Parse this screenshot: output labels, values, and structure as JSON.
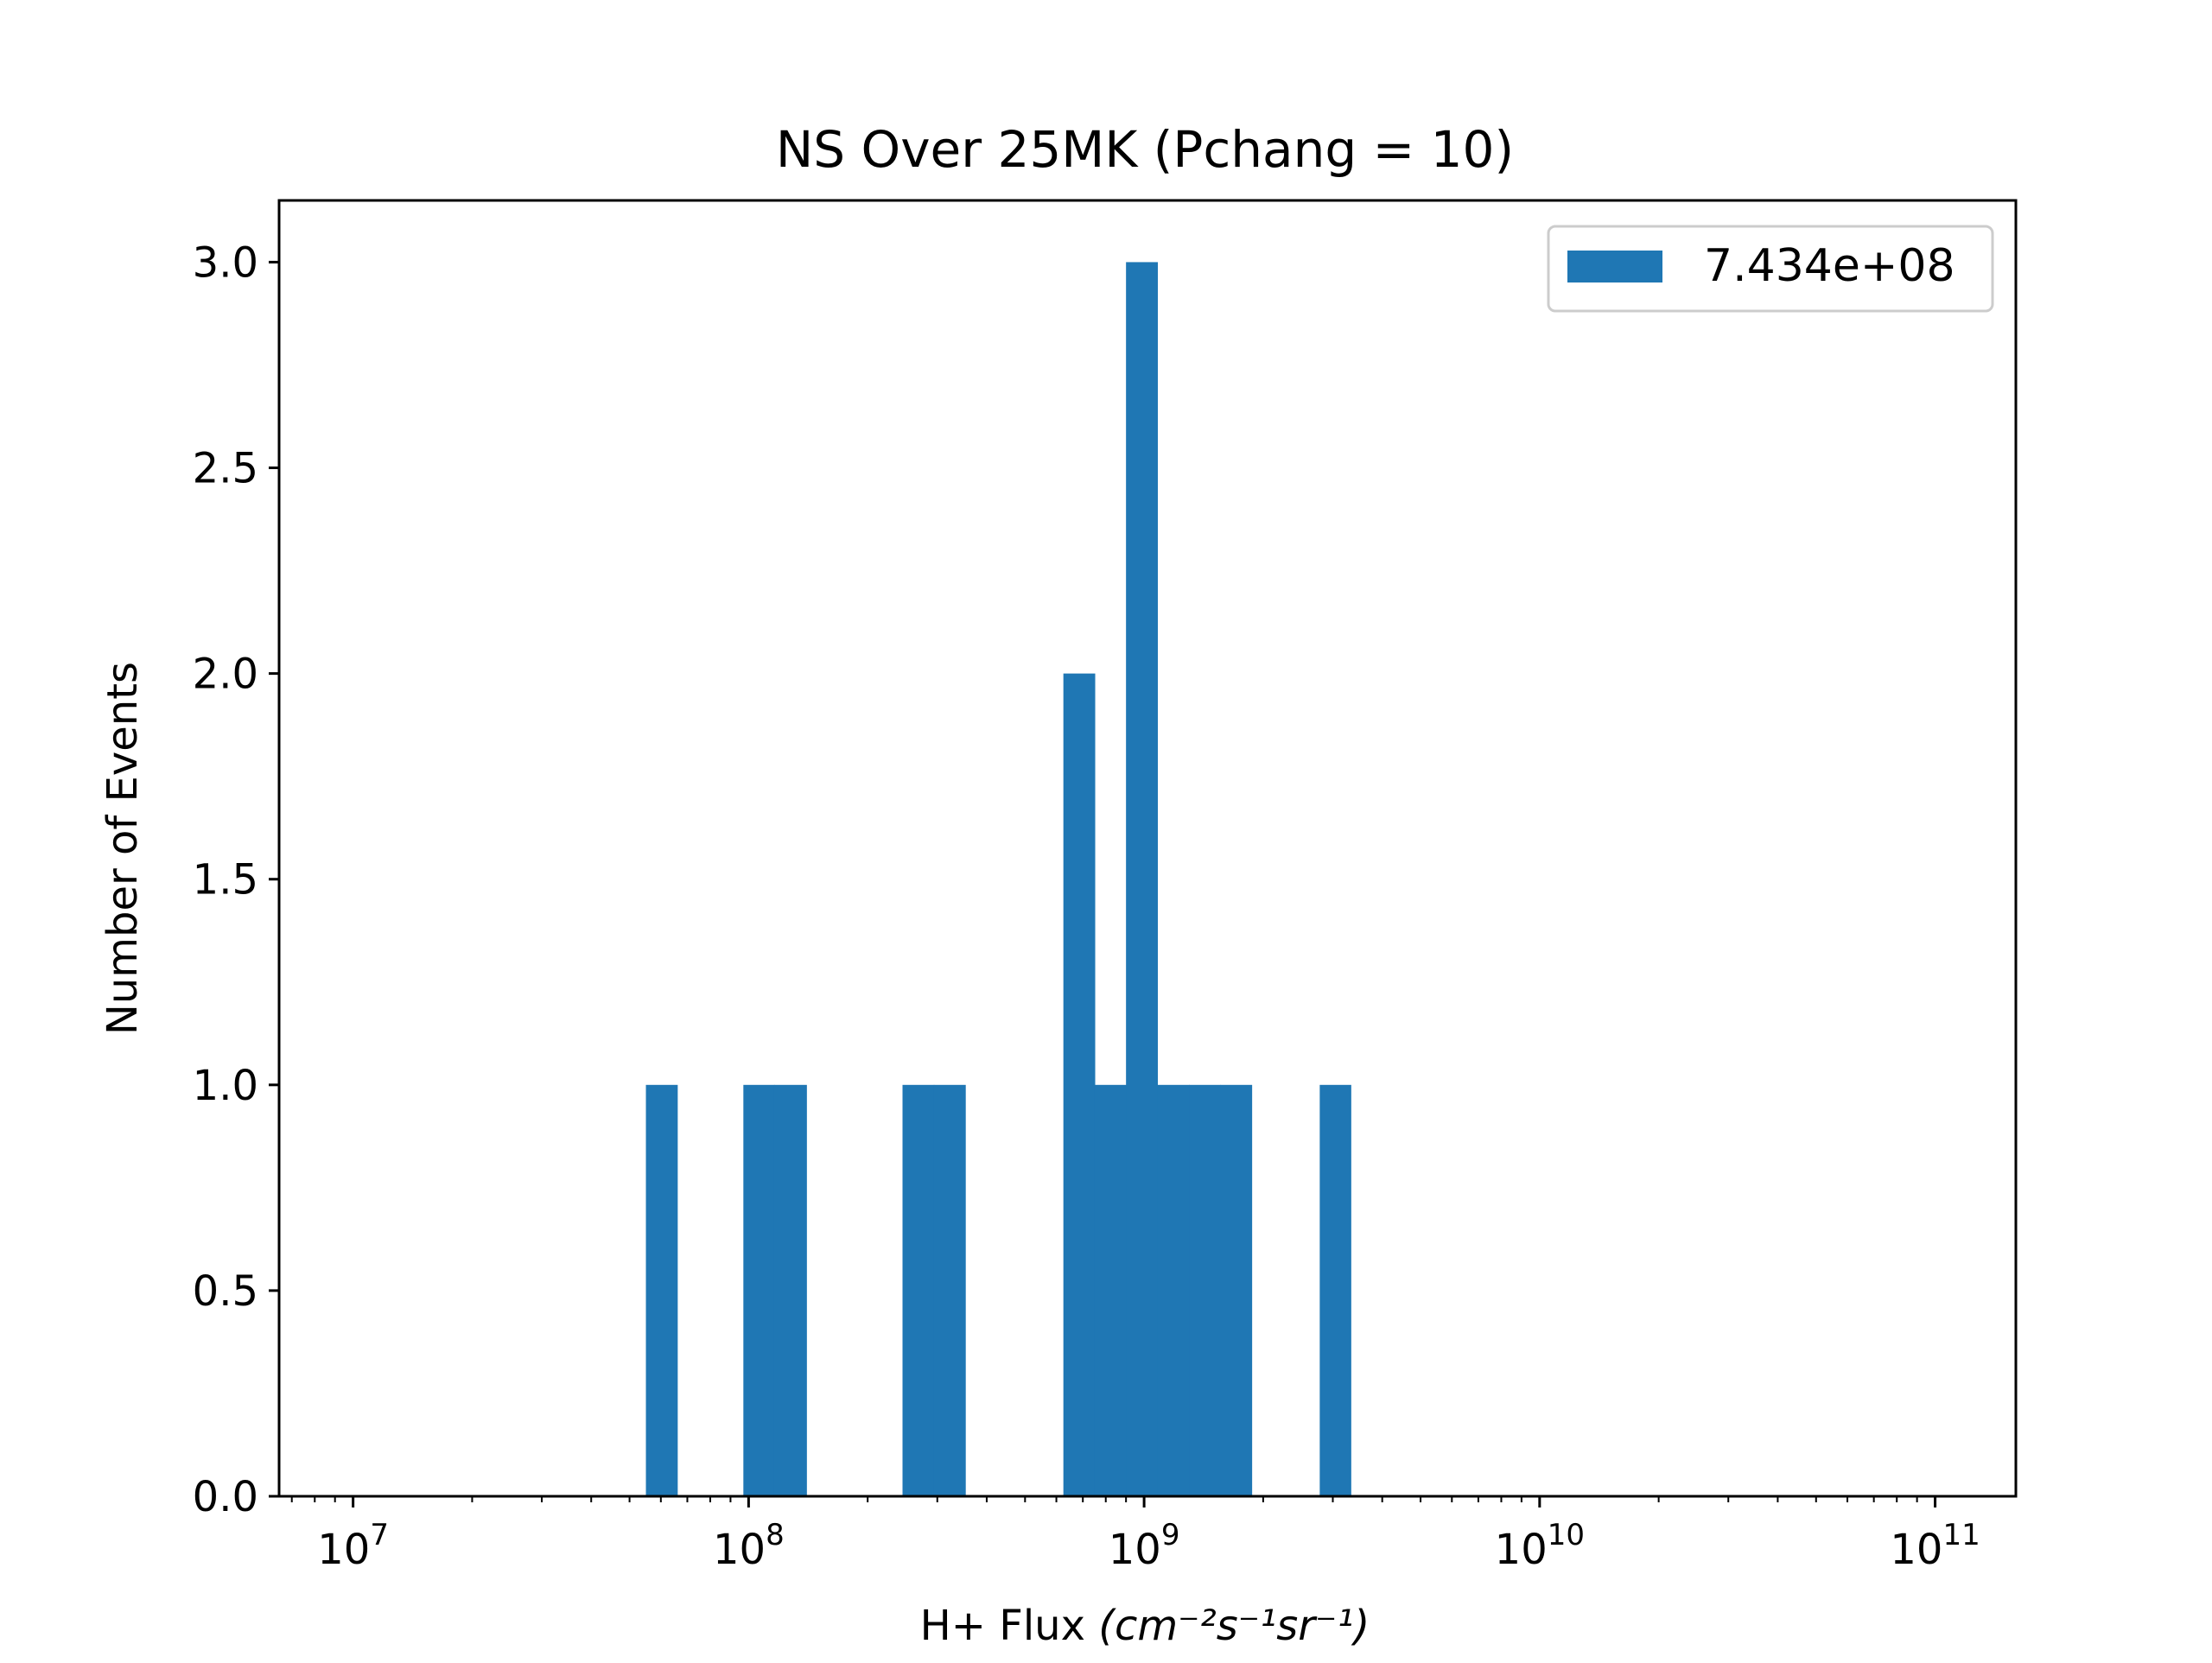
{
  "chart_data": {
    "type": "bar",
    "title": "NS Over 25MK  (Pchang = 10)",
    "xlabel": "H+ Flux",
    "xlabel_unit": "(cm⁻²s⁻¹sr⁻¹)",
    "ylabel": "Number of Events",
    "xscale": "log",
    "xlim": [
      6500000.0,
      160000000000.0
    ],
    "ylim": [
      0,
      3.15
    ],
    "x_major_tick_labels": [
      {
        "base": "10",
        "exp": "7",
        "value": 10000000.0
      },
      {
        "base": "10",
        "exp": "8",
        "value": 100000000.0
      },
      {
        "base": "10",
        "exp": "9",
        "value": 1000000000.0
      },
      {
        "base": "10",
        "exp": "10",
        "value": 10000000000.0
      },
      {
        "base": "10",
        "exp": "11",
        "value": 100000000000.0
      }
    ],
    "y_tick_labels": [
      "0.0",
      "0.5",
      "1.0",
      "1.5",
      "2.0",
      "2.5",
      "3.0"
    ],
    "y_tick_values": [
      0,
      0.5,
      1.0,
      1.5,
      2.0,
      2.5,
      3.0
    ],
    "series": [
      {
        "name": "7.434e+08",
        "color": "#1f77b4",
        "bins": [
          {
            "x0": 55000000.0,
            "x1": 66000000.0,
            "count": 1
          },
          {
            "x0": 97000000.0,
            "x1": 116000000.0,
            "count": 1
          },
          {
            "x0": 116000000.0,
            "x1": 140000000.0,
            "count": 1
          },
          {
            "x0": 245000000.0,
            "x1": 294000000.0,
            "count": 1
          },
          {
            "x0": 294000000.0,
            "x1": 353000000.0,
            "count": 1
          },
          {
            "x0": 625000000.0,
            "x1": 750000000.0,
            "count": 2
          },
          {
            "x0": 750000000.0,
            "x1": 900000000.0,
            "count": 1
          },
          {
            "x0": 900000000.0,
            "x1": 1080000000.0,
            "count": 3
          },
          {
            "x0": 1080000000.0,
            "x1": 1300000000.0,
            "count": 1
          },
          {
            "x0": 1300000000.0,
            "x1": 1560000000.0,
            "count": 1
          },
          {
            "x0": 1560000000.0,
            "x1": 1870000000.0,
            "count": 1
          },
          {
            "x0": 2780000000.0,
            "x1": 3330000000.0,
            "count": 1
          }
        ]
      }
    ],
    "legend_position": "top-right",
    "grid": false
  }
}
